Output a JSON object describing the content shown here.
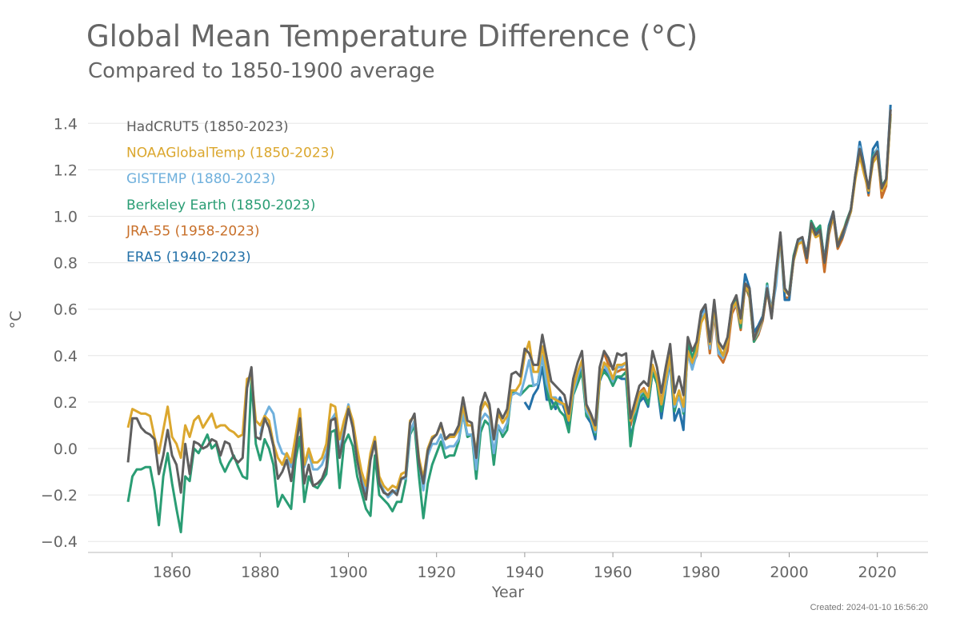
{
  "chart_data": {
    "type": "line",
    "title": "Global Mean Temperature Difference (°C)",
    "subtitle": "Compared to 1850-1900 average",
    "xlabel": "Year",
    "ylabel": "°C",
    "xlim": [
      1843,
      2031
    ],
    "ylim": [
      -0.45,
      1.5
    ],
    "xticks": [
      1860,
      1880,
      1900,
      1920,
      1940,
      1960,
      1980,
      2000,
      2020
    ],
    "yticks": [
      -0.4,
      -0.2,
      0.0,
      0.2,
      0.4,
      0.6,
      0.8,
      1.0,
      1.2,
      1.4
    ],
    "ytick_labels": [
      "−0.4",
      "−0.2",
      "0.0",
      "0.2",
      "0.4",
      "0.6",
      "0.8",
      "1.0",
      "1.2",
      "1.4"
    ],
    "grid": "horizontal",
    "legend_placement": "top-left",
    "footer": "Created: 2024-01-10 16:56:20",
    "series": [
      {
        "name": "JRA-55 (1958-2023)",
        "color": "#c8702a",
        "start": 1958,
        "values": [
          0.41,
          0.36,
          0.35,
          0.33,
          0.34,
          0.34,
          0.1,
          0.18,
          0.24,
          0.26,
          0.22,
          0.36,
          0.3,
          0.2,
          0.31,
          0.42,
          0.18,
          0.24,
          0.16,
          0.43,
          0.36,
          0.4,
          0.55,
          0.58,
          0.41,
          0.58,
          0.4,
          0.37,
          0.42,
          0.58,
          0.62,
          0.51,
          0.7,
          0.65,
          0.46,
          0.49,
          0.55,
          0.68,
          0.57,
          0.72,
          0.92,
          0.65,
          0.65,
          0.81,
          0.88,
          0.89,
          0.8,
          0.95,
          0.91,
          0.92,
          0.76,
          0.92,
          1.0,
          0.86,
          0.9,
          0.96,
          1.02,
          1.17,
          1.3,
          1.2,
          1.09,
          1.26,
          1.29,
          1.08,
          1.13,
          1.44
        ]
      },
      {
        "name": "ERA5 (1940-2023)",
        "color": "#2471a8",
        "start": 1940,
        "values": [
          0.2,
          0.17,
          0.23,
          0.26,
          0.35,
          0.21,
          0.21,
          0.17,
          0.22,
          0.17,
          0.1,
          0.25,
          0.3,
          0.35,
          0.14,
          0.11,
          0.04,
          0.29,
          0.34,
          0.31,
          0.3,
          0.31,
          0.3,
          0.3,
          0.05,
          0.12,
          0.2,
          0.22,
          0.18,
          0.33,
          0.28,
          0.13,
          0.26,
          0.38,
          0.12,
          0.17,
          0.08,
          0.45,
          0.38,
          0.43,
          0.58,
          0.62,
          0.45,
          0.62,
          0.42,
          0.4,
          0.47,
          0.62,
          0.63,
          0.56,
          0.75,
          0.69,
          0.5,
          0.53,
          0.57,
          0.69,
          0.6,
          0.73,
          0.91,
          0.64,
          0.64,
          0.82,
          0.89,
          0.9,
          0.84,
          0.96,
          0.93,
          0.95,
          0.81,
          0.96,
          1.02,
          0.88,
          0.91,
          0.96,
          1.03,
          1.17,
          1.32,
          1.22,
          1.1,
          1.29,
          1.32,
          1.12,
          1.15,
          1.48
        ]
      },
      {
        "name": "Berkeley Earth (1850-2023)",
        "color": "#2a9d74",
        "start": 1850,
        "values": [
          -0.23,
          -0.12,
          -0.09,
          -0.09,
          -0.08,
          -0.08,
          -0.18,
          -0.33,
          -0.12,
          -0.02,
          -0.15,
          -0.26,
          -0.36,
          -0.12,
          -0.14,
          0.0,
          -0.02,
          0.02,
          0.06,
          0.0,
          0.02,
          -0.06,
          -0.1,
          -0.06,
          -0.03,
          -0.08,
          -0.12,
          -0.13,
          0.3,
          0.02,
          -0.05,
          0.04,
          0.0,
          -0.07,
          -0.25,
          -0.2,
          -0.23,
          -0.26,
          -0.05,
          0.05,
          -0.23,
          -0.12,
          -0.16,
          -0.17,
          -0.14,
          -0.11,
          0.07,
          0.08,
          -0.17,
          0.02,
          0.06,
          0.01,
          -0.12,
          -0.19,
          -0.26,
          -0.29,
          -0.03,
          -0.2,
          -0.22,
          -0.24,
          -0.27,
          -0.23,
          -0.23,
          -0.14,
          0.06,
          0.1,
          -0.12,
          -0.3,
          -0.15,
          -0.07,
          -0.02,
          0.03,
          -0.04,
          -0.03,
          -0.03,
          0.03,
          0.15,
          0.05,
          0.06,
          -0.13,
          0.07,
          0.12,
          0.1,
          -0.07,
          0.1,
          0.05,
          0.08,
          0.24,
          0.24,
          0.23,
          0.25,
          0.27,
          0.27,
          0.28,
          0.4,
          0.26,
          0.17,
          0.2,
          0.16,
          0.14,
          0.07,
          0.23,
          0.28,
          0.33,
          0.14,
          0.13,
          0.06,
          0.3,
          0.33,
          0.31,
          0.27,
          0.31,
          0.31,
          0.33,
          0.01,
          0.14,
          0.21,
          0.24,
          0.19,
          0.33,
          0.28,
          0.16,
          0.27,
          0.39,
          0.16,
          0.24,
          0.15,
          0.46,
          0.39,
          0.45,
          0.56,
          0.58,
          0.46,
          0.6,
          0.43,
          0.4,
          0.46,
          0.61,
          0.64,
          0.52,
          0.71,
          0.66,
          0.46,
          0.5,
          0.56,
          0.71,
          0.57,
          0.74,
          0.92,
          0.68,
          0.67,
          0.83,
          0.9,
          0.9,
          0.82,
          0.98,
          0.94,
          0.96,
          0.8,
          0.95,
          1.01,
          0.87,
          0.92,
          0.98,
          1.03,
          1.18,
          1.27,
          1.19,
          1.11,
          1.26,
          1.29,
          1.13,
          1.16,
          1.43
        ]
      },
      {
        "name": "GISTEMP (1880-2023)",
        "color": "#6fb0dc",
        "start": 1880,
        "values": [
          0.06,
          0.14,
          0.18,
          0.15,
          0.03,
          -0.02,
          -0.03,
          -0.08,
          0.03,
          0.16,
          -0.08,
          -0.02,
          -0.09,
          -0.09,
          -0.07,
          -0.02,
          0.12,
          0.15,
          -0.03,
          0.1,
          0.19,
          0.1,
          -0.02,
          -0.13,
          -0.19,
          -0.04,
          0.03,
          -0.14,
          -0.18,
          -0.21,
          -0.19,
          -0.18,
          -0.13,
          -0.13,
          0.07,
          0.12,
          -0.05,
          -0.18,
          -0.03,
          0.02,
          0.02,
          0.06,
          0.0,
          0.01,
          0.01,
          0.04,
          0.15,
          0.06,
          0.06,
          -0.09,
          0.12,
          0.15,
          0.13,
          -0.02,
          0.1,
          0.07,
          0.11,
          0.23,
          0.24,
          0.23,
          0.3,
          0.38,
          0.27,
          0.28,
          0.4,
          0.28,
          0.22,
          0.22,
          0.19,
          0.19,
          0.12,
          0.24,
          0.31,
          0.37,
          0.16,
          0.13,
          0.07,
          0.32,
          0.36,
          0.33,
          0.29,
          0.35,
          0.35,
          0.37,
          0.12,
          0.16,
          0.23,
          0.25,
          0.22,
          0.35,
          0.31,
          0.19,
          0.27,
          0.39,
          0.18,
          0.22,
          0.16,
          0.41,
          0.34,
          0.41,
          0.54,
          0.6,
          0.43,
          0.6,
          0.41,
          0.39,
          0.46,
          0.6,
          0.62,
          0.54,
          0.7,
          0.67,
          0.47,
          0.5,
          0.56,
          0.7,
          0.59,
          0.7,
          0.9,
          0.69,
          0.66,
          0.81,
          0.89,
          0.9,
          0.83,
          0.96,
          0.91,
          0.93,
          0.81,
          0.93,
          1.01,
          0.89,
          0.92,
          0.96,
          1.02,
          1.17,
          1.3,
          1.2,
          1.12,
          1.25,
          1.29,
          1.12,
          1.15,
          1.46
        ]
      },
      {
        "name": "NOAAGlobalTemp (1850-2023)",
        "color": "#dba72e",
        "start": 1850,
        "values": [
          0.09,
          0.17,
          0.16,
          0.15,
          0.15,
          0.14,
          0.05,
          -0.02,
          0.08,
          0.18,
          0.05,
          0.02,
          -0.04,
          0.1,
          0.05,
          0.12,
          0.14,
          0.09,
          0.12,
          0.15,
          0.09,
          0.1,
          0.1,
          0.08,
          0.07,
          0.05,
          0.06,
          0.3,
          0.31,
          0.12,
          0.1,
          0.14,
          0.12,
          0.02,
          -0.04,
          -0.07,
          -0.02,
          -0.06,
          0.05,
          0.17,
          -0.07,
          0.0,
          -0.06,
          -0.06,
          -0.04,
          0.02,
          0.19,
          0.18,
          0.04,
          0.12,
          0.18,
          0.12,
          0.0,
          -0.1,
          -0.16,
          -0.02,
          0.05,
          -0.12,
          -0.16,
          -0.18,
          -0.16,
          -0.17,
          -0.11,
          -0.1,
          0.12,
          0.14,
          -0.04,
          -0.13,
          0.0,
          0.05,
          0.06,
          0.1,
          0.04,
          0.05,
          0.05,
          0.08,
          0.18,
          0.1,
          0.1,
          -0.02,
          0.16,
          0.2,
          0.17,
          0.04,
          0.15,
          0.11,
          0.14,
          0.25,
          0.25,
          0.28,
          0.4,
          0.46,
          0.33,
          0.33,
          0.44,
          0.34,
          0.22,
          0.21,
          0.2,
          0.19,
          0.12,
          0.26,
          0.33,
          0.38,
          0.18,
          0.14,
          0.08,
          0.3,
          0.37,
          0.35,
          0.3,
          0.36,
          0.36,
          0.37,
          0.12,
          0.17,
          0.24,
          0.25,
          0.22,
          0.36,
          0.3,
          0.19,
          0.3,
          0.4,
          0.19,
          0.25,
          0.18,
          0.42,
          0.37,
          0.42,
          0.54,
          0.58,
          0.45,
          0.61,
          0.44,
          0.4,
          0.46,
          0.6,
          0.63,
          0.54,
          0.7,
          0.67,
          0.47,
          0.51,
          0.56,
          0.68,
          0.58,
          0.75,
          0.91,
          0.68,
          0.66,
          0.81,
          0.88,
          0.89,
          0.83,
          0.95,
          0.91,
          0.92,
          0.8,
          0.93,
          1.0,
          0.88,
          0.93,
          0.97,
          1.02,
          1.16,
          1.26,
          1.18,
          1.11,
          1.23,
          1.26,
          1.11,
          1.14,
          1.44
        ]
      },
      {
        "name": "HadCRUT5 (1850-2023)",
        "color": "#5f5f5f",
        "start": 1850,
        "values": [
          -0.06,
          0.13,
          0.13,
          0.09,
          0.07,
          0.06,
          0.04,
          -0.11,
          -0.03,
          0.08,
          -0.03,
          -0.07,
          -0.19,
          0.02,
          -0.11,
          0.03,
          0.02,
          0.0,
          0.01,
          0.04,
          0.03,
          -0.03,
          0.03,
          0.02,
          -0.04,
          -0.06,
          -0.04,
          0.26,
          0.35,
          0.05,
          0.04,
          0.13,
          0.09,
          0.01,
          -0.13,
          -0.1,
          -0.05,
          -0.14,
          -0.01,
          0.13,
          -0.15,
          -0.07,
          -0.16,
          -0.15,
          -0.13,
          -0.08,
          0.12,
          0.13,
          -0.04,
          0.06,
          0.17,
          0.09,
          -0.05,
          -0.15,
          -0.22,
          -0.05,
          0.03,
          -0.15,
          -0.19,
          -0.2,
          -0.18,
          -0.2,
          -0.13,
          -0.12,
          0.11,
          0.15,
          -0.06,
          -0.15,
          -0.01,
          0.04,
          0.06,
          0.11,
          0.04,
          0.06,
          0.06,
          0.1,
          0.22,
          0.12,
          0.11,
          -0.04,
          0.18,
          0.24,
          0.19,
          0.04,
          0.17,
          0.13,
          0.17,
          0.32,
          0.33,
          0.31,
          0.43,
          0.41,
          0.36,
          0.36,
          0.49,
          0.39,
          0.29,
          0.27,
          0.25,
          0.23,
          0.15,
          0.3,
          0.37,
          0.42,
          0.19,
          0.15,
          0.1,
          0.35,
          0.42,
          0.39,
          0.34,
          0.41,
          0.4,
          0.41,
          0.13,
          0.2,
          0.27,
          0.29,
          0.27,
          0.42,
          0.35,
          0.24,
          0.35,
          0.45,
          0.24,
          0.31,
          0.23,
          0.48,
          0.42,
          0.46,
          0.59,
          0.62,
          0.46,
          0.64,
          0.46,
          0.43,
          0.48,
          0.62,
          0.66,
          0.56,
          0.71,
          0.69,
          0.47,
          0.52,
          0.56,
          0.69,
          0.56,
          0.76,
          0.93,
          0.69,
          0.66,
          0.82,
          0.9,
          0.91,
          0.82,
          0.97,
          0.92,
          0.94,
          0.8,
          0.94,
          1.02,
          0.87,
          0.92,
          0.97,
          1.03,
          1.18,
          1.29,
          1.21,
          1.12,
          1.25,
          1.28,
          1.12,
          1.16,
          1.46
        ]
      }
    ],
    "legend_order": [
      "HadCRUT5 (1850-2023)",
      "NOAAGlobalTemp (1850-2023)",
      "GISTEMP (1880-2023)",
      "Berkeley Earth (1850-2023)",
      "JRA-55 (1958-2023)",
      "ERA5 (1940-2023)"
    ]
  }
}
